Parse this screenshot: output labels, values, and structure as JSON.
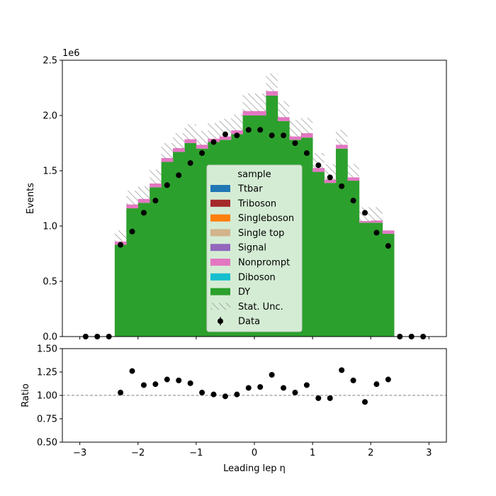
{
  "chart_data": [
    {
      "type": "bar",
      "subtype": "stacked-histogram",
      "title": "",
      "xlabel": "Leading lep η",
      "ylabel": "Events",
      "offset_text": "1e6",
      "xlim": [
        -3.3,
        3.3
      ],
      "ylim": [
        0,
        2500000
      ],
      "xticks": [
        -3,
        -2,
        -1,
        0,
        1,
        2,
        3
      ],
      "xtick_labels": [
        "−3",
        "−2",
        "−1",
        "0",
        "1",
        "2",
        "3"
      ],
      "yticks": [
        0,
        500000,
        1000000,
        1500000,
        2000000,
        2500000
      ],
      "ytick_labels": [
        "0.0",
        "0.5",
        "1.0",
        "1.5",
        "2.0",
        "2.5"
      ],
      "bin_edges": [
        -3.0,
        -2.8,
        -2.6,
        -2.4,
        -2.2,
        -2.0,
        -1.8,
        -1.6,
        -1.4,
        -1.2,
        -1.0,
        -0.8,
        -0.6,
        -0.4,
        -0.2,
        0.0,
        0.2,
        0.4,
        0.6,
        0.8,
        1.0,
        1.2,
        1.4,
        1.6,
        1.8,
        2.0,
        2.2,
        2.4,
        2.6,
        2.8,
        3.0
      ],
      "series": [
        {
          "name": "DY",
          "color": "#2ca02c",
          "values": [
            0,
            0,
            0,
            830000,
            1160000,
            1210000,
            1350000,
            1580000,
            1670000,
            1750000,
            1700000,
            1760000,
            1780000,
            1830000,
            2000000,
            2000000,
            2180000,
            1950000,
            1780000,
            1800000,
            1490000,
            1390000,
            1700000,
            1410000,
            1030000,
            1030000,
            930000,
            0,
            0,
            0
          ]
        },
        {
          "name": "Nonprompt",
          "color": "#e377c2",
          "values": [
            0,
            0,
            0,
            30000,
            35000,
            35000,
            35000,
            35000,
            35000,
            35000,
            35000,
            30000,
            30000,
            35000,
            40000,
            40000,
            40000,
            35000,
            30000,
            40000,
            35000,
            30000,
            35000,
            30000,
            15000,
            20000,
            30000,
            0,
            0,
            0
          ]
        },
        {
          "name": "Diboson",
          "color": "#17becf",
          "values": [
            0,
            0,
            0,
            0,
            0,
            0,
            0,
            0,
            0,
            0,
            0,
            0,
            0,
            0,
            0,
            0,
            0,
            0,
            0,
            0,
            0,
            0,
            0,
            0,
            0,
            0,
            0,
            0,
            0,
            0
          ]
        },
        {
          "name": "Signal",
          "color": "#9467bd",
          "values": [
            0,
            0,
            0,
            0,
            0,
            0,
            0,
            0,
            0,
            0,
            0,
            0,
            0,
            0,
            0,
            0,
            0,
            0,
            0,
            0,
            0,
            0,
            0,
            0,
            0,
            0,
            0,
            0,
            0,
            0
          ]
        },
        {
          "name": "Single top",
          "color": "#d2b48c",
          "values": [
            0,
            0,
            0,
            0,
            0,
            0,
            0,
            0,
            0,
            0,
            0,
            0,
            0,
            0,
            0,
            0,
            0,
            0,
            0,
            0,
            0,
            0,
            0,
            0,
            0,
            0,
            0,
            0,
            0,
            0
          ]
        },
        {
          "name": "Singleboson",
          "color": "#ff7f0e",
          "values": [
            0,
            0,
            0,
            0,
            0,
            0,
            0,
            0,
            0,
            0,
            0,
            0,
            0,
            0,
            0,
            0,
            0,
            0,
            0,
            0,
            0,
            0,
            0,
            0,
            0,
            0,
            0,
            0,
            0,
            0
          ]
        },
        {
          "name": "Triboson",
          "color": "#a52a2a",
          "values": [
            0,
            0,
            0,
            0,
            0,
            0,
            0,
            0,
            0,
            0,
            0,
            0,
            0,
            0,
            0,
            0,
            0,
            0,
            0,
            0,
            0,
            0,
            0,
            0,
            0,
            0,
            0,
            0,
            0,
            0
          ]
        },
        {
          "name": "Ttbar",
          "color": "#1f77b4",
          "values": [
            0,
            0,
            0,
            0,
            0,
            0,
            0,
            0,
            0,
            0,
            0,
            0,
            0,
            0,
            0,
            0,
            0,
            0,
            0,
            0,
            0,
            0,
            0,
            0,
            0,
            0,
            0,
            0,
            0,
            0
          ]
        }
      ],
      "stat_unc_upper": [
        0,
        0,
        0,
        960000,
        1320000,
        1360000,
        1510000,
        1750000,
        1840000,
        1920000,
        1860000,
        1930000,
        1970000,
        2010000,
        2200000,
        2200000,
        2380000,
        2130000,
        1960000,
        1980000,
        1660000,
        1560000,
        1870000,
        1560000,
        1170000,
        1170000,
        960000,
        0,
        0,
        0
      ],
      "stat_unc_lower": [
        0,
        0,
        0,
        860000,
        1190000,
        1240000,
        1380000,
        1610000,
        1700000,
        1780000,
        1730000,
        1790000,
        1810000,
        1860000,
        2030000,
        2030000,
        2210000,
        1980000,
        1810000,
        1830000,
        1520000,
        1410000,
        1730000,
        1440000,
        1040000,
        1040000,
        960000,
        0,
        0,
        0
      ],
      "data_points": {
        "name": "Data",
        "x": [
          -2.9,
          -2.7,
          -2.5,
          -2.3,
          -2.1,
          -1.9,
          -1.7,
          -1.5,
          -1.3,
          -1.1,
          -0.9,
          -0.7,
          -0.5,
          -0.3,
          -0.1,
          0.1,
          0.3,
          0.5,
          0.7,
          0.9,
          1.1,
          1.3,
          1.5,
          1.7,
          1.9,
          2.1,
          2.3,
          2.5,
          2.7,
          2.9
        ],
        "y": [
          0,
          0,
          0,
          830000,
          950000,
          1120000,
          1230000,
          1370000,
          1460000,
          1570000,
          1660000,
          1760000,
          1830000,
          1820000,
          1870000,
          1870000,
          1820000,
          1820000,
          1750000,
          1660000,
          1550000,
          1440000,
          1360000,
          1230000,
          1120000,
          940000,
          820000,
          0,
          0,
          0
        ]
      },
      "legend": {
        "title": "sample",
        "placement": "lower-center",
        "entries": [
          {
            "label": "Ttbar",
            "kind": "patch",
            "color": "#1f77b4"
          },
          {
            "label": "Triboson",
            "kind": "patch",
            "color": "#a52a2a"
          },
          {
            "label": "Singleboson",
            "kind": "patch",
            "color": "#ff7f0e"
          },
          {
            "label": "Single top",
            "kind": "patch",
            "color": "#d2b48c"
          },
          {
            "label": "Signal",
            "kind": "patch",
            "color": "#9467bd"
          },
          {
            "label": "Nonprompt",
            "kind": "patch",
            "color": "#e377c2"
          },
          {
            "label": "Diboson",
            "kind": "patch",
            "color": "#17becf"
          },
          {
            "label": "DY",
            "kind": "patch",
            "color": "#2ca02c"
          },
          {
            "label": "Stat. Unc.",
            "kind": "hatch",
            "color": "#808080"
          },
          {
            "label": "Data",
            "kind": "marker",
            "color": "#000000"
          }
        ]
      }
    },
    {
      "type": "scatter",
      "subtype": "ratio",
      "title": "",
      "xlabel": "Leading lep η",
      "ylabel": "Ratio",
      "xlim": [
        -3.3,
        3.3
      ],
      "ylim": [
        0.5,
        1.5
      ],
      "yticks": [
        0.5,
        0.75,
        1.0,
        1.25,
        1.5
      ],
      "ytick_labels": [
        "0.50",
        "0.75",
        "1.00",
        "1.25",
        "1.50"
      ],
      "reference_line": 1.0,
      "x": [
        -2.3,
        -2.1,
        -1.9,
        -1.7,
        -1.5,
        -1.3,
        -1.1,
        -0.9,
        -0.7,
        -0.5,
        -0.3,
        -0.1,
        0.1,
        0.3,
        0.5,
        0.7,
        0.9,
        1.1,
        1.3,
        1.5,
        1.7,
        1.9,
        2.1,
        2.3
      ],
      "y": [
        1.03,
        1.26,
        1.11,
        1.12,
        1.17,
        1.16,
        1.13,
        1.03,
        1.01,
        0.99,
        1.01,
        1.08,
        1.09,
        1.22,
        1.08,
        1.03,
        1.11,
        0.97,
        0.97,
        1.27,
        1.16,
        0.93,
        1.12,
        1.17
      ]
    }
  ]
}
